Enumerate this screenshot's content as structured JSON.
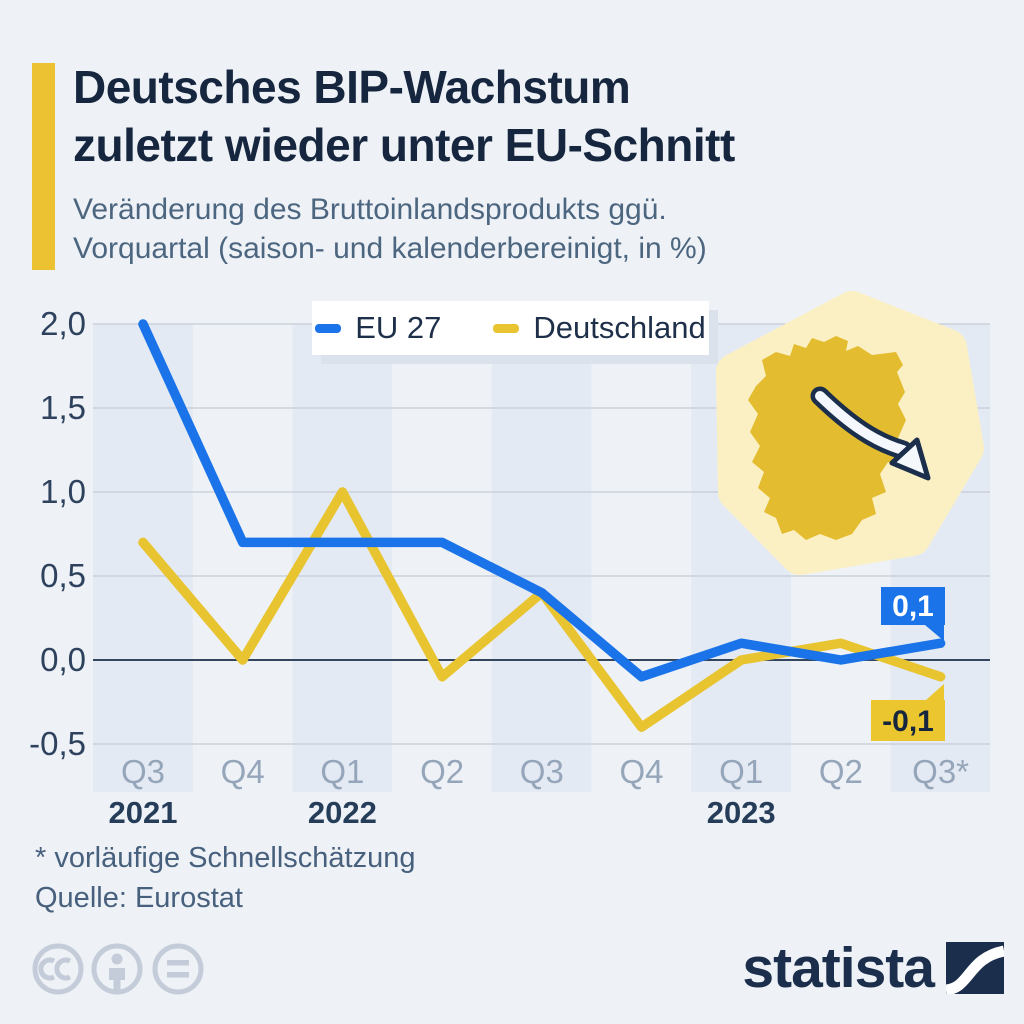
{
  "header": {
    "title_line1": "Deutsches BIP-Wachstum",
    "title_line2": "zuletzt wieder unter EU-Schnitt",
    "subtitle_line1": "Veränderung des Bruttoinlandsprodukts ggü.",
    "subtitle_line2": "Vorquartal (saison- und kalenderbereinigt, in %)",
    "accent_color": "#ecc233"
  },
  "chart_data": {
    "type": "line",
    "title": "Deutsches BIP-Wachstum zuletzt wieder unter EU-Schnitt",
    "subtitle": "Veränderung des Bruttoinlandsprodukts ggü. Vorquartal (saison- und kalenderbereinigt, in %)",
    "categories": [
      "Q3",
      "Q4",
      "Q1",
      "Q2",
      "Q3",
      "Q4",
      "Q1",
      "Q2",
      "Q3*"
    ],
    "year_labels": [
      {
        "label": "2021",
        "category_index": 0
      },
      {
        "label": "2022",
        "category_index": 2
      },
      {
        "label": "2023",
        "category_index": 6
      }
    ],
    "series": [
      {
        "name": "EU 27",
        "color": "#1a73e8",
        "values": [
          2.0,
          0.7,
          0.7,
          0.7,
          0.4,
          -0.1,
          0.1,
          0.0,
          0.1
        ],
        "end_label": "0,1"
      },
      {
        "name": "Deutschland",
        "color": "#e9c431",
        "values": [
          0.7,
          0.0,
          1.0,
          -0.1,
          0.4,
          -0.4,
          0.0,
          0.1,
          -0.1
        ],
        "end_label": "-0,1"
      }
    ],
    "y_ticks": [
      {
        "label": "2,0",
        "value": 2.0
      },
      {
        "label": "1,5",
        "value": 1.5
      },
      {
        "label": "1,0",
        "value": 1.0
      },
      {
        "label": "0,5",
        "value": 0.5
      },
      {
        "label": "0,0",
        "value": 0.0
      },
      {
        "label": "-0,5",
        "value": -0.5
      }
    ],
    "ylim": [
      -0.5,
      2.0
    ],
    "grid": "horizontal",
    "legend_position": "top-center",
    "stripe_color": "#e4eaf3"
  },
  "footnote": {
    "line1": "* vorläufige Schnellschätzung",
    "line2": "Quelle: Eurostat"
  },
  "branding": {
    "logo_text": "statista",
    "license_icons": [
      "cc-icon",
      "attribution-person-icon",
      "equals-icon"
    ]
  },
  "colors": {
    "background": "#eef2f7",
    "title_navy": "#16263e",
    "subtitle_gray": "#4d6680",
    "blue_line": "#1a73e8",
    "yellow_line": "#e9c431",
    "zero_line": "#33465e",
    "gridline": "#c5cbd5",
    "map_gold": "#e3bc2f",
    "map_blob": "#fbf0c4"
  }
}
